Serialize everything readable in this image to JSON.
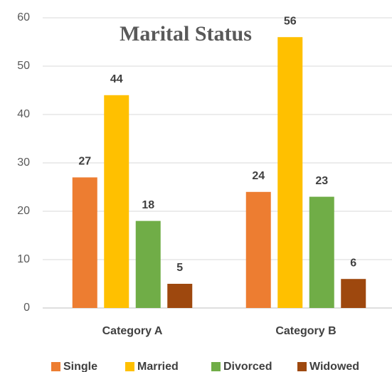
{
  "chart_data": {
    "type": "bar",
    "title": "Marital Status",
    "categories": [
      "Category A",
      "Category B"
    ],
    "series": [
      {
        "name": "Single",
        "color": "#ED7D31",
        "values": [
          27,
          24
        ]
      },
      {
        "name": "Married",
        "color": "#FFC000",
        "values": [
          44,
          56
        ]
      },
      {
        "name": "Divorced",
        "color": "#70AD47",
        "values": [
          18,
          23
        ]
      },
      {
        "name": "Widowed",
        "color": "#9E480E",
        "values": [
          5,
          6
        ]
      }
    ],
    "ylim": [
      0,
      60
    ],
    "yticks": [
      0,
      10,
      20,
      30,
      40,
      50,
      60
    ],
    "grid": true,
    "legend": "bottom"
  }
}
